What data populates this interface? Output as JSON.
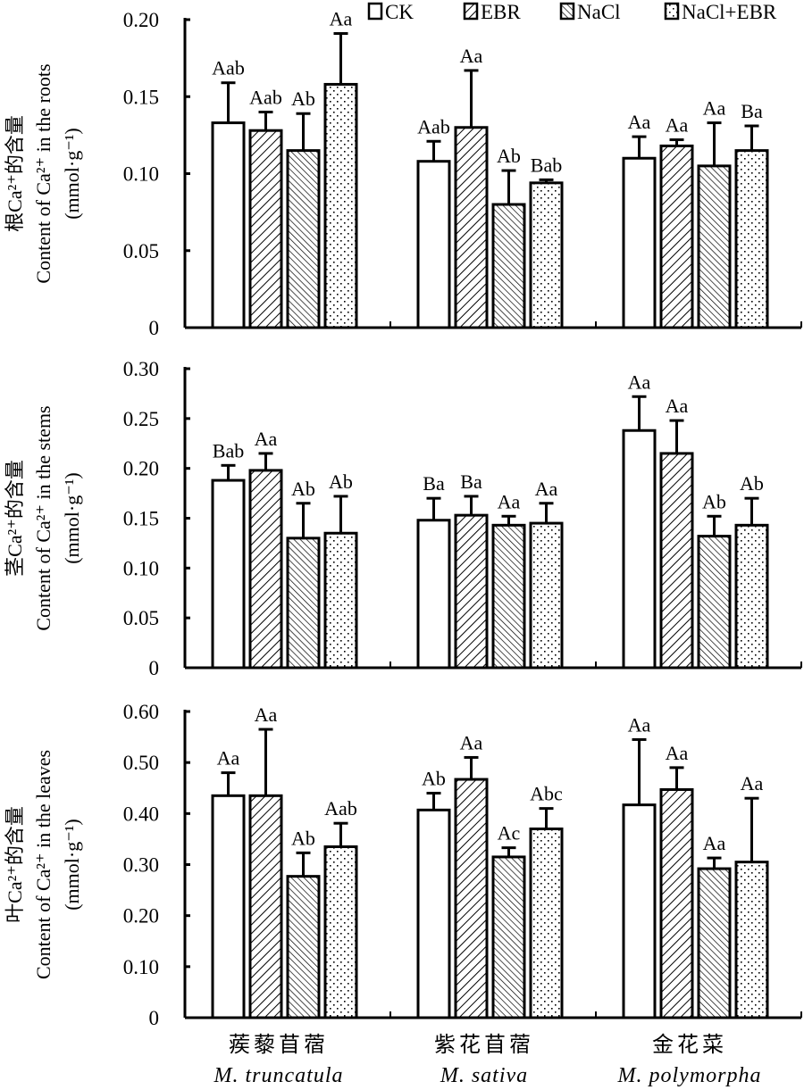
{
  "chart_data": {
    "type": "bar",
    "legend": {
      "placement": "top-right",
      "entries": [
        "CK",
        "EBR",
        "NaCl",
        "NaCl+EBR"
      ]
    },
    "categories": [
      {
        "cn": "蒺藜苜蓿",
        "latin": "M. truncatula"
      },
      {
        "cn": "紫花苜蓿",
        "latin": "M. sativa"
      },
      {
        "cn": "金花菜",
        "latin": "M. polymorpha"
      }
    ],
    "panels": [
      {
        "ylabel_cn": "根Ca²⁺的含量",
        "ylabel_en": "Content of Ca²⁺ in the roots",
        "ylabel_unit": "(mmol·g⁻¹)",
        "ylim": [
          0,
          0.2
        ],
        "ticks": [
          "0",
          "0.05",
          "0.10",
          "0.15",
          "0.20"
        ],
        "values": [
          [
            0.133,
            0.128,
            0.115,
            0.158
          ],
          [
            0.108,
            0.13,
            0.08,
            0.094
          ],
          [
            0.11,
            0.118,
            0.105,
            0.115
          ]
        ],
        "errors": [
          [
            0.026,
            0.012,
            0.024,
            0.033
          ],
          [
            0.013,
            0.037,
            0.022,
            0.002
          ],
          [
            0.014,
            0.004,
            0.028,
            0.016
          ]
        ],
        "labels": [
          [
            "Aab",
            "Aab",
            "Ab",
            "Aa"
          ],
          [
            "Aab",
            "Aa",
            "Ab",
            "Bab"
          ],
          [
            "Aa",
            "Aa",
            "Aa",
            "Ba"
          ]
        ]
      },
      {
        "ylabel_cn": "茎Ca²⁺的含量",
        "ylabel_en": "Content of Ca²⁺ in the stems",
        "ylabel_unit": "(mmol·g⁻¹)",
        "ylim": [
          0,
          0.3
        ],
        "ticks": [
          "0",
          "0.05",
          "0.10",
          "0.15",
          "0.20",
          "0.25",
          "0.30"
        ],
        "values": [
          [
            0.188,
            0.198,
            0.13,
            0.135
          ],
          [
            0.148,
            0.153,
            0.143,
            0.145
          ],
          [
            0.238,
            0.215,
            0.132,
            0.143
          ]
        ],
        "errors": [
          [
            0.015,
            0.017,
            0.035,
            0.037
          ],
          [
            0.022,
            0.019,
            0.009,
            0.02
          ],
          [
            0.034,
            0.033,
            0.02,
            0.027
          ]
        ],
        "labels": [
          [
            "Bab",
            "Aa",
            "Ab",
            "Ab"
          ],
          [
            "Ba",
            "Ba",
            "Aa",
            "Aa"
          ],
          [
            "Aa",
            "Aa",
            "Ab",
            "Ab"
          ]
        ]
      },
      {
        "ylabel_cn": "叶Ca²⁺的含量",
        "ylabel_en": "Content of Ca²⁺ in the leaves",
        "ylabel_unit": "(mmol·g⁻¹)",
        "ylim": [
          0,
          0.6
        ],
        "ticks": [
          "0",
          "0.10",
          "0.20",
          "0.30",
          "0.40",
          "0.50",
          "0.60"
        ],
        "values": [
          [
            0.435,
            0.435,
            0.277,
            0.335
          ],
          [
            0.407,
            0.467,
            0.315,
            0.37
          ],
          [
            0.417,
            0.447,
            0.292,
            0.305
          ]
        ],
        "errors": [
          [
            0.045,
            0.13,
            0.046,
            0.046
          ],
          [
            0.033,
            0.043,
            0.018,
            0.04
          ],
          [
            0.128,
            0.043,
            0.021,
            0.125
          ]
        ],
        "labels": [
          [
            "Aa",
            "Aa",
            "Ab",
            "Aab"
          ],
          [
            "Ab",
            "Aa",
            "Ac",
            "Abc"
          ],
          [
            "Aa",
            "Aa",
            "Aa",
            "Aa"
          ]
        ]
      }
    ]
  }
}
